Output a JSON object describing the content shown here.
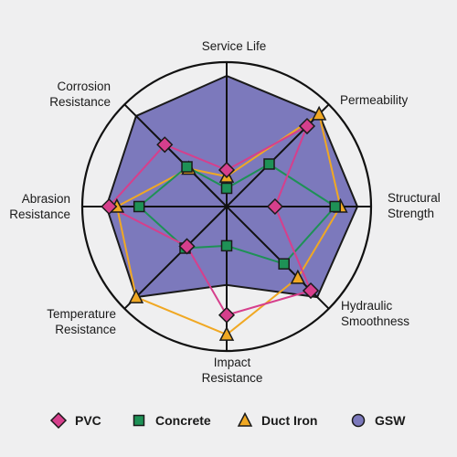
{
  "chart_data": {
    "type": "radar",
    "axes": [
      "Service Life",
      "Permeability",
      "Structural Strength",
      "Hydraulic Smoothness",
      "Impact Resistance",
      "Temperature Resistance",
      "Abrasion Resistance",
      "Corrosion Resistance"
    ],
    "axis_label_lines": [
      [
        "Service Life"
      ],
      [
        "Permeability"
      ],
      [
        "Structural",
        "Strength"
      ],
      [
        "Hydraulic",
        "Smoothness"
      ],
      [
        "Impact",
        "Resistance"
      ],
      [
        "Temperature",
        "Resistance"
      ],
      [
        "Abrasion",
        "Resistance"
      ],
      [
        "Corrosion",
        "Resistance"
      ]
    ],
    "range": [
      0,
      1
    ],
    "series": [
      {
        "name": "GSW",
        "values": [
          1.0,
          1.0,
          1.0,
          0.98,
          0.6,
          0.98,
          0.92,
          0.98
        ],
        "color": "#7c79bc",
        "marker": "circle",
        "filled": true
      },
      {
        "name": "PVC",
        "values": [
          0.28,
          0.87,
          0.37,
          0.91,
          0.83,
          0.43,
          0.9,
          0.67
        ],
        "color": "#d63f8c",
        "marker": "diamond"
      },
      {
        "name": "Concrete",
        "values": [
          0.14,
          0.46,
          0.83,
          0.62,
          0.3,
          0.45,
          0.67,
          0.43
        ],
        "color": "#1e9156",
        "marker": "square"
      },
      {
        "name": "Duct Iron",
        "values": [
          0.23,
          1.0,
          0.87,
          0.77,
          0.98,
          0.98,
          0.84,
          0.41
        ],
        "color": "#f0a823",
        "marker": "triangle"
      }
    ],
    "legend_order": [
      "PVC",
      "Concrete",
      "Duct Iron",
      "GSW"
    ],
    "legend_position": "bottom",
    "grid": false
  }
}
